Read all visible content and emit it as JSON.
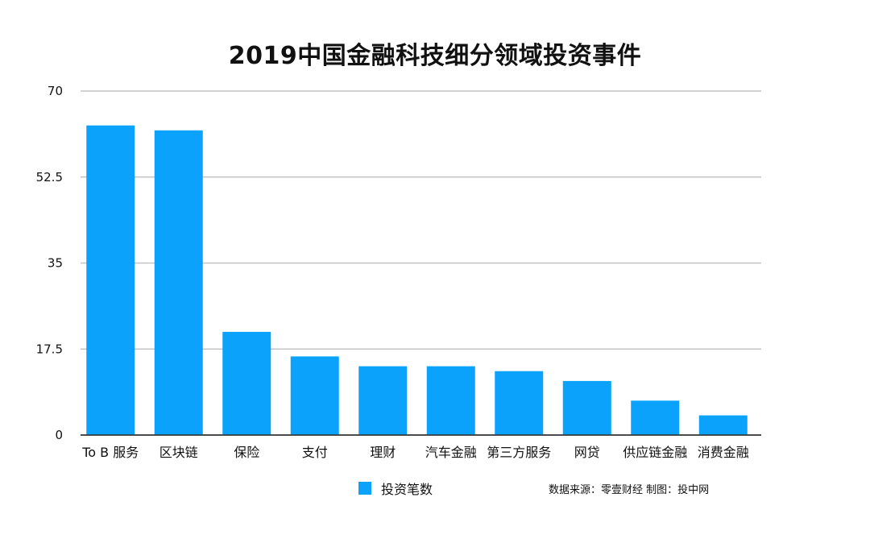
{
  "chart_data": {
    "type": "bar",
    "title": "2019中国金融科技细分领域投资事件",
    "categories": [
      "To B 服务",
      "区块链",
      "保险",
      "支付",
      "理财",
      "汽车金融",
      "第三方服务",
      "网贷",
      "供应链金融",
      "消费金融"
    ],
    "series": [
      {
        "name": "投资笔数",
        "values": [
          63,
          62,
          21,
          16,
          14,
          14,
          13,
          11,
          7,
          4
        ]
      }
    ],
    "y_ticks": [
      "0",
      "17.5",
      "35",
      "52.5",
      "70"
    ],
    "ylim": [
      0,
      70
    ],
    "grid": true,
    "legend_position": "bottom",
    "bar_color": "#0aa2fb"
  },
  "source_note": "数据来源：零壹财经 制图：投中网"
}
